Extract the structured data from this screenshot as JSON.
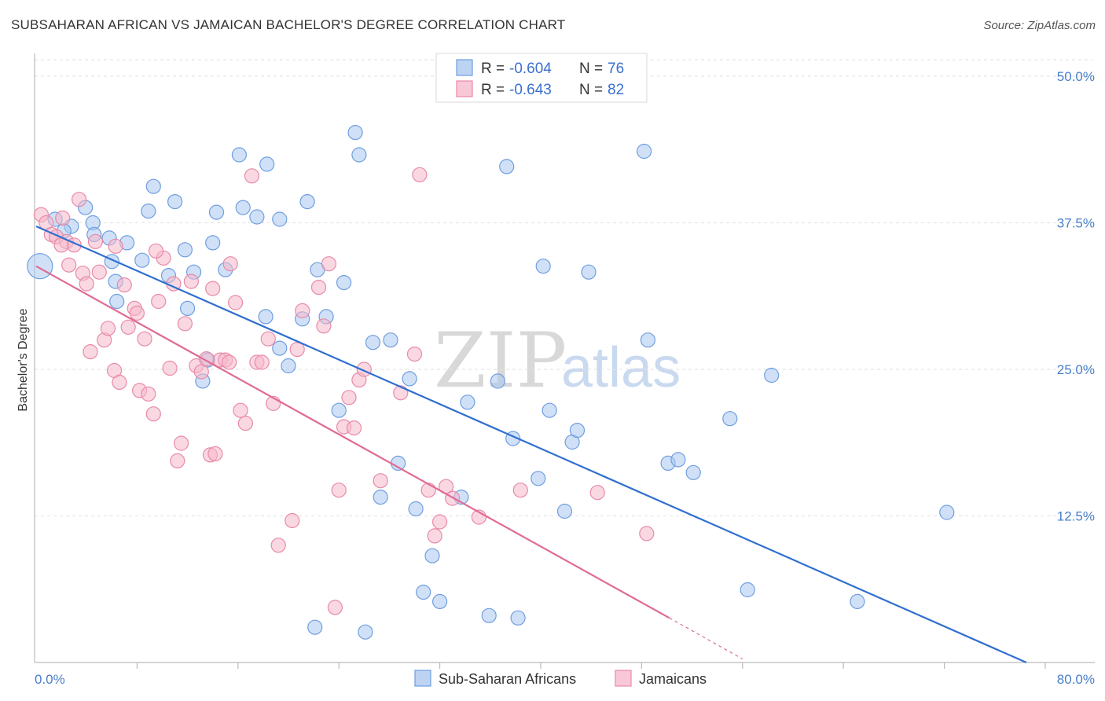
{
  "title": "SUBSAHARAN AFRICAN VS JAMAICAN BACHELOR'S DEGREE CORRELATION CHART",
  "source": "Source: ZipAtlas.com",
  "watermark": {
    "zip": "ZIP",
    "atlas": "atlas"
  },
  "chart_data": {
    "type": "scatter",
    "ylabel": "Bachelor's Degree",
    "xlim": [
      0,
      80
    ],
    "ylim": [
      0,
      52
    ],
    "x_tick_labels": [
      "0.0%",
      "80.0%"
    ],
    "y_ticks": [
      12.5,
      25.0,
      37.5,
      50.0
    ],
    "y_tick_labels": [
      "12.5%",
      "25.0%",
      "37.5%",
      "50.0%"
    ],
    "grid": true,
    "legend_placement": "top-center",
    "legend": {
      "rows": [
        {
          "r_label": "R =",
          "r_value": "-0.604",
          "n_label": "N =",
          "n_value": "76"
        },
        {
          "r_label": "R =",
          "r_value": "-0.643",
          "n_label": "N =",
          "n_value": "82"
        }
      ]
    },
    "series": [
      {
        "name": "Sub-Saharan Africans",
        "color": "#6f9ee0",
        "fill": "#aac8f0",
        "line_color": "#2f6fd0",
        "trend": {
          "x0": 0,
          "y0": 37.2,
          "x1": 78.5,
          "y1": 0
        },
        "points": [
          [
            0.3,
            33.8
          ],
          [
            1.5,
            37.8
          ],
          [
            2.8,
            37.2
          ],
          [
            2.2,
            36.8
          ],
          [
            4.5,
            37.5
          ],
          [
            3.9,
            38.8
          ],
          [
            4.6,
            36.5
          ],
          [
            5.8,
            36.2
          ],
          [
            6.0,
            34.2
          ],
          [
            7.2,
            35.8
          ],
          [
            6.3,
            32.5
          ],
          [
            6.4,
            30.8
          ],
          [
            8.4,
            34.3
          ],
          [
            9.3,
            40.6
          ],
          [
            8.9,
            38.5
          ],
          [
            10.5,
            33.0
          ],
          [
            11.0,
            39.3
          ],
          [
            11.8,
            35.2
          ],
          [
            12.5,
            33.3
          ],
          [
            13.2,
            24.0
          ],
          [
            13.6,
            25.8
          ],
          [
            14.0,
            35.8
          ],
          [
            14.3,
            38.4
          ],
          [
            15.0,
            33.5
          ],
          [
            16.1,
            43.3
          ],
          [
            16.4,
            38.8
          ],
          [
            17.5,
            38.0
          ],
          [
            18.3,
            42.5
          ],
          [
            19.3,
            37.8
          ],
          [
            18.2,
            29.5
          ],
          [
            19.3,
            26.8
          ],
          [
            20.0,
            25.3
          ],
          [
            21.1,
            29.3
          ],
          [
            21.5,
            39.3
          ],
          [
            22.3,
            33.5
          ],
          [
            23.0,
            29.5
          ],
          [
            24.0,
            21.5
          ],
          [
            24.4,
            32.4
          ],
          [
            25.3,
            45.2
          ],
          [
            25.6,
            43.3
          ],
          [
            26.7,
            27.3
          ],
          [
            27.3,
            14.1
          ],
          [
            28.1,
            27.5
          ],
          [
            28.7,
            17.0
          ],
          [
            29.6,
            24.2
          ],
          [
            30.1,
            13.1
          ],
          [
            30.7,
            6.0
          ],
          [
            31.4,
            9.1
          ],
          [
            32.0,
            5.2
          ],
          [
            33.7,
            14.1
          ],
          [
            34.2,
            22.2
          ],
          [
            35.9,
            4.0
          ],
          [
            36.6,
            24.0
          ],
          [
            37.3,
            42.3
          ],
          [
            37.8,
            19.1
          ],
          [
            38.2,
            3.8
          ],
          [
            39.8,
            15.7
          ],
          [
            40.2,
            33.8
          ],
          [
            40.7,
            21.5
          ],
          [
            41.9,
            12.9
          ],
          [
            42.5,
            18.8
          ],
          [
            42.9,
            19.8
          ],
          [
            43.8,
            33.3
          ],
          [
            48.2,
            43.6
          ],
          [
            48.5,
            27.5
          ],
          [
            50.1,
            17.0
          ],
          [
            50.9,
            17.3
          ],
          [
            52.1,
            16.2
          ],
          [
            55.0,
            20.8
          ],
          [
            56.4,
            6.2
          ],
          [
            58.3,
            24.5
          ],
          [
            65.1,
            5.2
          ],
          [
            72.2,
            12.8
          ],
          [
            22.1,
            3.0
          ],
          [
            26.1,
            2.6
          ],
          [
            12.0,
            30.2
          ]
        ]
      },
      {
        "name": "Jamaicans",
        "color": "#e88aa8",
        "fill": "#f5b8cb",
        "line_color": "#e06b94",
        "trend": {
          "x0": 0,
          "y0": 33.8,
          "x1": 50.2,
          "y1": 3.8
        },
        "trend_dashed": {
          "x0": 50.2,
          "y0": 3.8,
          "x1": 56.0,
          "y1": 0.3
        },
        "points": [
          [
            0.4,
            38.2
          ],
          [
            0.8,
            37.5
          ],
          [
            1.2,
            36.5
          ],
          [
            1.6,
            36.3
          ],
          [
            2.1,
            37.9
          ],
          [
            2.4,
            35.9
          ],
          [
            2.6,
            33.9
          ],
          [
            3.0,
            35.6
          ],
          [
            3.4,
            39.5
          ],
          [
            3.7,
            33.2
          ],
          [
            4.0,
            32.3
          ],
          [
            4.3,
            26.5
          ],
          [
            4.7,
            35.9
          ],
          [
            5.0,
            33.3
          ],
          [
            5.4,
            27.5
          ],
          [
            5.7,
            28.5
          ],
          [
            6.2,
            24.9
          ],
          [
            6.6,
            23.9
          ],
          [
            7.0,
            32.2
          ],
          [
            7.3,
            28.6
          ],
          [
            7.8,
            30.2
          ],
          [
            8.2,
            23.2
          ],
          [
            8.6,
            27.6
          ],
          [
            8.9,
            22.9
          ],
          [
            9.3,
            21.2
          ],
          [
            9.7,
            30.8
          ],
          [
            10.1,
            34.5
          ],
          [
            10.6,
            25.1
          ],
          [
            10.9,
            32.3
          ],
          [
            11.2,
            17.2
          ],
          [
            11.5,
            18.7
          ],
          [
            11.8,
            28.9
          ],
          [
            12.3,
            32.5
          ],
          [
            12.7,
            25.3
          ],
          [
            13.1,
            24.8
          ],
          [
            13.5,
            25.9
          ],
          [
            13.8,
            17.7
          ],
          [
            14.2,
            17.8
          ],
          [
            14.6,
            25.8
          ],
          [
            15.0,
            25.8
          ],
          [
            15.4,
            34.0
          ],
          [
            15.8,
            30.7
          ],
          [
            16.2,
            21.5
          ],
          [
            16.6,
            20.4
          ],
          [
            17.1,
            41.5
          ],
          [
            17.5,
            25.6
          ],
          [
            17.9,
            25.6
          ],
          [
            18.4,
            27.6
          ],
          [
            18.8,
            22.1
          ],
          [
            19.2,
            10.0
          ],
          [
            20.3,
            12.1
          ],
          [
            20.7,
            26.7
          ],
          [
            21.1,
            30.0
          ],
          [
            22.4,
            32.0
          ],
          [
            22.8,
            28.7
          ],
          [
            23.2,
            34.0
          ],
          [
            23.7,
            4.7
          ],
          [
            24.0,
            14.7
          ],
          [
            24.4,
            20.1
          ],
          [
            24.8,
            22.6
          ],
          [
            25.2,
            20.0
          ],
          [
            25.6,
            24.1
          ],
          [
            26.0,
            25.0
          ],
          [
            27.3,
            15.5
          ],
          [
            28.9,
            23.0
          ],
          [
            30.0,
            26.3
          ],
          [
            30.4,
            41.6
          ],
          [
            31.1,
            14.7
          ],
          [
            31.6,
            10.8
          ],
          [
            32.0,
            12.0
          ],
          [
            32.5,
            15.0
          ],
          [
            33.0,
            14.0
          ],
          [
            35.1,
            12.4
          ],
          [
            38.4,
            14.7
          ],
          [
            44.5,
            14.5
          ],
          [
            48.4,
            11.0
          ],
          [
            14.0,
            31.9
          ],
          [
            15.3,
            25.6
          ],
          [
            6.3,
            35.5
          ],
          [
            2.0,
            35.6
          ],
          [
            8.0,
            29.8
          ],
          [
            9.5,
            35.1
          ]
        ]
      }
    ]
  }
}
